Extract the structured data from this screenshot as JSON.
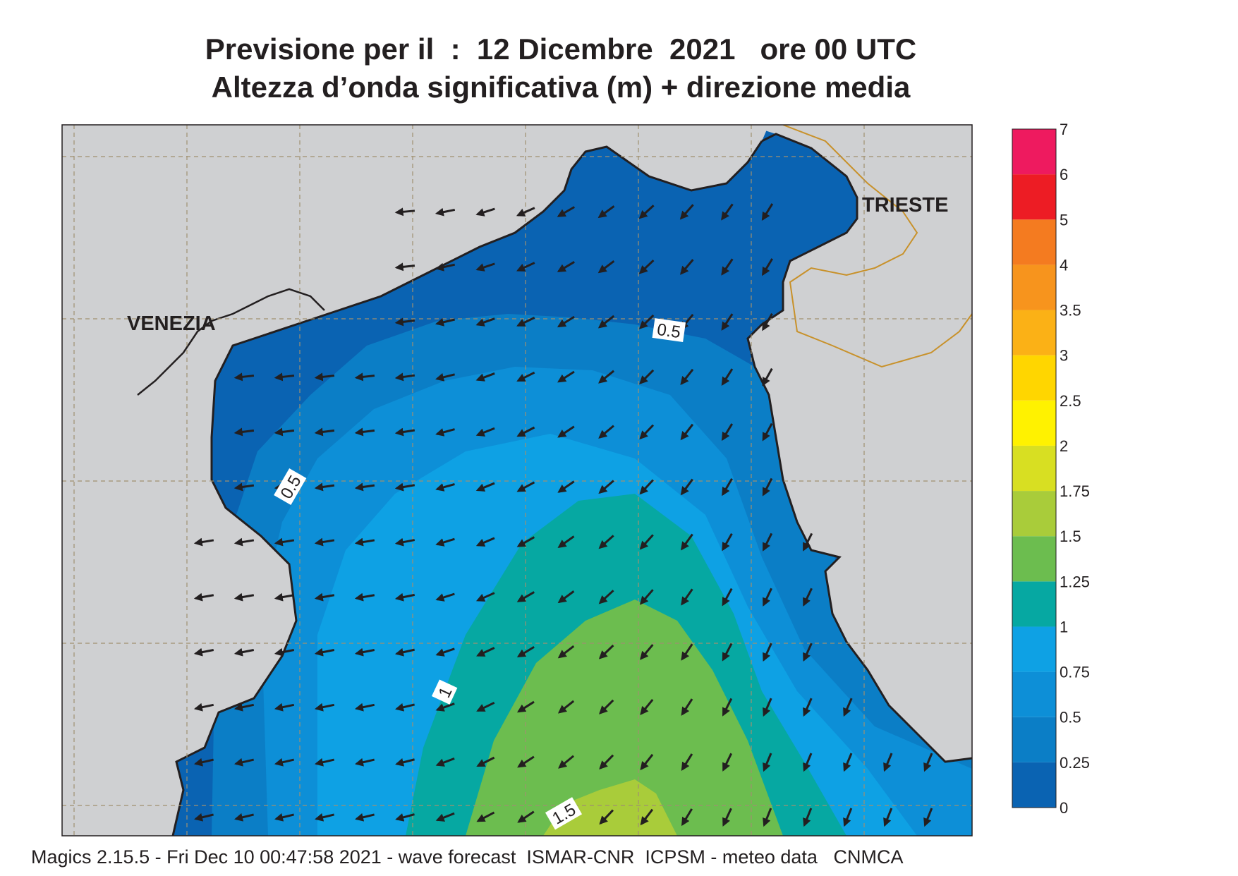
{
  "header": {
    "title_line1": "Previsione per il  :  12 Dicembre  2021   ore 00 UTC",
    "title_line2": "Altezza d’onda significativa (m) + direzione media"
  },
  "map": {
    "city_labels": [
      "VENEZIA",
      "TRIESTE"
    ],
    "contour_labels": [
      "0.5",
      "0.5",
      "1",
      "1.5"
    ]
  },
  "legend": {
    "ticks": [
      "0",
      "0.25",
      "0.5",
      "0.75",
      "1",
      "1.25",
      "1.5",
      "1.75",
      "2",
      "2.5",
      "3",
      "3.5",
      "4",
      "5",
      "6",
      "7"
    ],
    "colors": [
      "#0a63b2",
      "#0b7ec6",
      "#0d8fd7",
      "#0ea1e4",
      "#06a8a2",
      "#6cbd4f",
      "#a9cc3a",
      "#d8df22",
      "#fff200",
      "#ffd600",
      "#fbb116",
      "#f7941d",
      "#f47b20",
      "#ed1c24",
      "#ee1a5f"
    ]
  },
  "colors": {
    "land": "#cfd0d2",
    "coast": "#231f20",
    "border": "#c8912a",
    "grid": "#a09070"
  },
  "footer": {
    "text": "Magics 2.15.5 - Fri Dec 10 00:47:58 2021 - wave forecast  ISMAR-CNR  ICPSM - meteo data   CNMCA"
  }
}
